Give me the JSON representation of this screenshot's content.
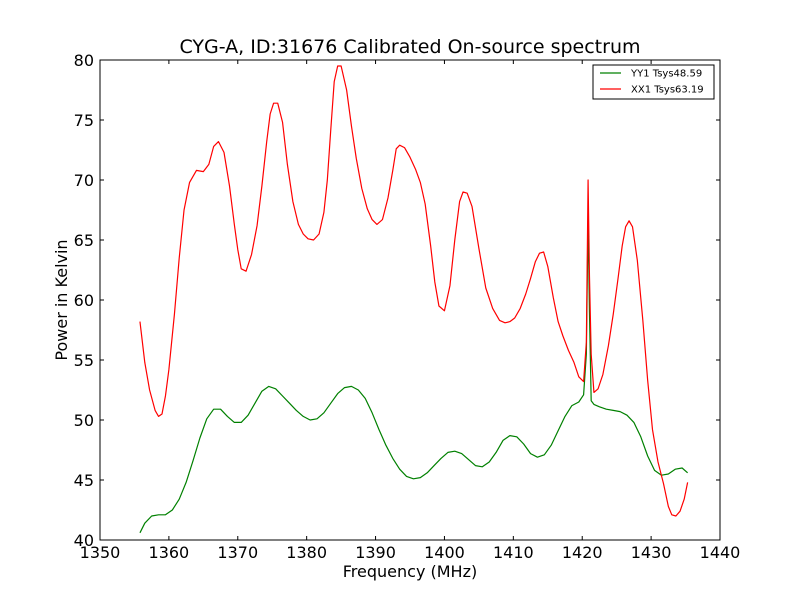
{
  "chart_data": {
    "type": "line",
    "title": "CYG-A, ID:31676 Calibrated On-source spectrum",
    "xlabel": "Frequency (MHz)",
    "ylabel": "Power in Kelvin",
    "xlim": [
      1350,
      1440
    ],
    "ylim": [
      40,
      80
    ],
    "xticks": [
      1350,
      1360,
      1370,
      1380,
      1390,
      1400,
      1410,
      1420,
      1430,
      1440
    ],
    "yticks": [
      40,
      45,
      50,
      55,
      60,
      65,
      70,
      75,
      80
    ],
    "grid": false,
    "legend_position": "top-right",
    "series": [
      {
        "name": "YY1 Tsys48.59",
        "color": "#008000",
        "x": [
          1355.8,
          1356.5,
          1357.5,
          1358.5,
          1359.5,
          1360.5,
          1361.5,
          1362.5,
          1363.5,
          1364.5,
          1365.5,
          1366.5,
          1367.5,
          1368.5,
          1369.5,
          1370.5,
          1371.5,
          1372.5,
          1373.5,
          1374.5,
          1375.5,
          1376.5,
          1377.5,
          1378.5,
          1379.5,
          1380.5,
          1381.5,
          1382.5,
          1383.5,
          1384.5,
          1385.5,
          1386.5,
          1387.5,
          1388.5,
          1389.5,
          1390.5,
          1391.5,
          1392.5,
          1393.5,
          1394.5,
          1395.5,
          1396.5,
          1397.5,
          1398.5,
          1399.5,
          1400.5,
          1401.5,
          1402.5,
          1403.5,
          1404.5,
          1405.5,
          1406.5,
          1407.5,
          1408.5,
          1409.5,
          1410.5,
          1411.5,
          1412.5,
          1413.5,
          1414.5,
          1415.5,
          1416.5,
          1417.5,
          1418.5,
          1419.5,
          1420.2,
          1420.6,
          1420.85,
          1421.05,
          1421.3,
          1421.7,
          1422.5,
          1423.5,
          1424.5,
          1425.5,
          1426.5,
          1427.5,
          1428.5,
          1429.5,
          1430.5,
          1431.5,
          1432.5,
          1433.5,
          1434.5,
          1435.3
        ],
        "values": [
          40.6,
          41.4,
          42.0,
          42.1,
          42.1,
          42.5,
          43.4,
          44.8,
          46.6,
          48.5,
          50.1,
          50.9,
          50.9,
          50.3,
          49.8,
          49.8,
          50.4,
          51.4,
          52.4,
          52.8,
          52.6,
          52.0,
          51.4,
          50.8,
          50.3,
          50.0,
          50.1,
          50.6,
          51.4,
          52.2,
          52.7,
          52.8,
          52.5,
          51.8,
          50.6,
          49.2,
          47.9,
          46.8,
          45.9,
          45.3,
          45.1,
          45.2,
          45.6,
          46.2,
          46.8,
          47.3,
          47.4,
          47.2,
          46.7,
          46.2,
          46.1,
          46.5,
          47.3,
          48.3,
          48.7,
          48.6,
          48.0,
          47.2,
          46.9,
          47.1,
          47.9,
          49.1,
          50.3,
          51.2,
          51.5,
          52.1,
          55.5,
          67.0,
          59.0,
          51.6,
          51.3,
          51.1,
          50.9,
          50.8,
          50.7,
          50.4,
          49.8,
          48.6,
          47.0,
          45.8,
          45.4,
          45.5,
          45.9,
          46.0,
          45.6
        ]
      },
      {
        "name": "XX1 Tsys63.19",
        "color": "#ff0000",
        "x": [
          1355.8,
          1356.5,
          1357.2,
          1358.0,
          1358.5,
          1359.0,
          1359.5,
          1360.0,
          1360.8,
          1361.5,
          1362.2,
          1363.0,
          1364.0,
          1365.0,
          1365.8,
          1366.5,
          1367.2,
          1368.0,
          1368.8,
          1369.5,
          1370.0,
          1370.5,
          1371.2,
          1372.0,
          1372.8,
          1373.5,
          1374.2,
          1374.7,
          1375.2,
          1375.8,
          1376.5,
          1377.2,
          1378.0,
          1378.8,
          1379.5,
          1380.2,
          1381.0,
          1381.8,
          1382.5,
          1383.0,
          1383.5,
          1384.0,
          1384.5,
          1385.0,
          1385.8,
          1386.5,
          1387.2,
          1388.0,
          1388.8,
          1389.5,
          1390.2,
          1391.0,
          1391.8,
          1392.5,
          1393.0,
          1393.5,
          1394.2,
          1395.0,
          1395.8,
          1396.5,
          1397.2,
          1398.0,
          1398.6,
          1399.2,
          1400.0,
          1400.8,
          1401.5,
          1402.2,
          1402.7,
          1403.3,
          1404.0,
          1405.0,
          1406.0,
          1407.0,
          1408.0,
          1408.8,
          1409.5,
          1410.2,
          1411.0,
          1411.8,
          1412.5,
          1413.2,
          1413.8,
          1414.4,
          1415.0,
          1415.8,
          1416.5,
          1417.2,
          1418.0,
          1418.8,
          1419.5,
          1420.2,
          1420.6,
          1420.85,
          1421.05,
          1421.3,
          1421.7,
          1422.3,
          1423.0,
          1423.8,
          1424.5,
          1425.2,
          1425.8,
          1426.3,
          1426.8,
          1427.3,
          1428.0,
          1428.8,
          1429.5,
          1430.2,
          1431.0,
          1431.8,
          1432.5,
          1433.0,
          1433.6,
          1434.2,
          1434.8,
          1435.3
        ],
        "values": [
          58.2,
          54.8,
          52.5,
          50.8,
          50.3,
          50.5,
          52.0,
          54.2,
          58.8,
          63.5,
          67.5,
          69.8,
          70.8,
          70.7,
          71.3,
          72.8,
          73.2,
          72.3,
          69.5,
          66.3,
          64.2,
          62.6,
          62.4,
          63.8,
          66.2,
          69.5,
          73.2,
          75.5,
          76.4,
          76.4,
          74.8,
          71.3,
          68.2,
          66.3,
          65.5,
          65.1,
          65.0,
          65.5,
          67.3,
          70.0,
          74.2,
          78.2,
          79.5,
          79.5,
          77.5,
          74.5,
          71.8,
          69.3,
          67.6,
          66.7,
          66.3,
          66.7,
          68.5,
          70.8,
          72.6,
          72.9,
          72.7,
          71.9,
          70.9,
          69.8,
          68.0,
          64.5,
          61.5,
          59.5,
          59.1,
          61.2,
          65.0,
          68.2,
          69.0,
          68.9,
          67.8,
          64.3,
          61.0,
          59.3,
          58.3,
          58.1,
          58.2,
          58.5,
          59.3,
          60.5,
          61.8,
          63.2,
          63.9,
          64.0,
          62.8,
          60.2,
          58.2,
          57.0,
          55.8,
          54.8,
          53.6,
          53.2,
          56.5,
          70.0,
          62.0,
          55.5,
          52.3,
          52.6,
          53.8,
          56.2,
          58.8,
          61.8,
          64.5,
          66.1,
          66.6,
          66.1,
          63.3,
          58.3,
          53.3,
          49.2,
          46.5,
          44.7,
          42.8,
          42.1,
          42.0,
          42.4,
          43.4,
          44.8
        ]
      }
    ]
  }
}
